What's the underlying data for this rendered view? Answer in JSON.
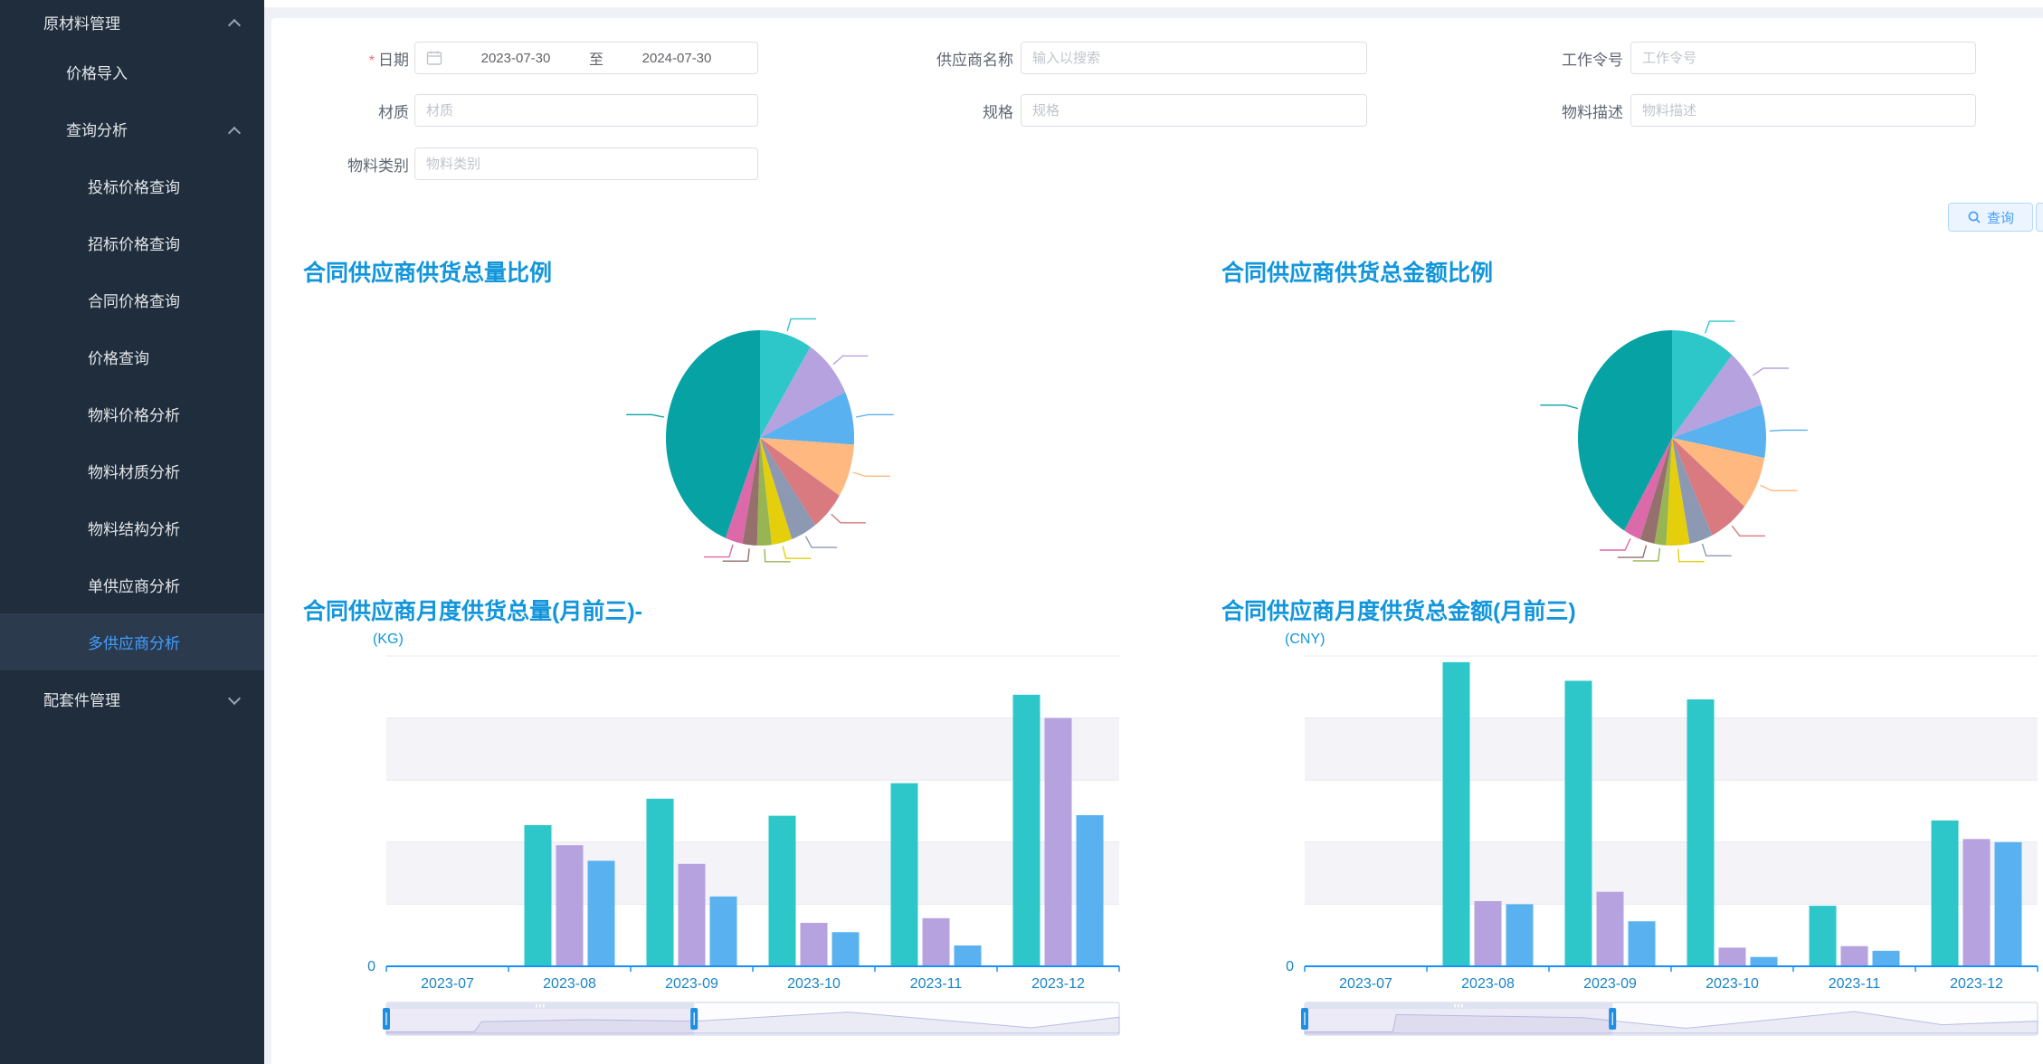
{
  "colors": {
    "sidebar_bg": "#1f2d3d",
    "sidebar_active_bg": "#2c3a4e",
    "sidebar_active_text": "#409eff",
    "title_blue": "#1296db",
    "axis_label_blue": "#1c84c6",
    "axis_line_blue": "#1890ff",
    "button_blue": "#409eff",
    "palette": [
      "#2ec7c9",
      "#b6a2de",
      "#5ab1ef",
      "#ffb980",
      "#d87a80",
      "#8d98b3",
      "#e5cf0d",
      "#97b552",
      "#95706d",
      "#dc69aa",
      "#07a2a4"
    ]
  },
  "sidebar": {
    "items": [
      {
        "label": "原材料管理",
        "level": 1,
        "chevron": "up",
        "active": false
      },
      {
        "label": "价格导入",
        "level": 2,
        "chevron": "",
        "active": false
      },
      {
        "label": "查询分析",
        "level": 2,
        "chevron": "up",
        "active": false
      },
      {
        "label": "投标价格查询",
        "level": 3,
        "chevron": "",
        "active": false
      },
      {
        "label": "招标价格查询",
        "level": 3,
        "chevron": "",
        "active": false
      },
      {
        "label": "合同价格查询",
        "level": 3,
        "chevron": "",
        "active": false
      },
      {
        "label": "价格查询",
        "level": 3,
        "chevron": "",
        "active": false
      },
      {
        "label": "物料价格分析",
        "level": 3,
        "chevron": "",
        "active": false
      },
      {
        "label": "物料材质分析",
        "level": 3,
        "chevron": "",
        "active": false
      },
      {
        "label": "物料结构分析",
        "level": 3,
        "chevron": "",
        "active": false
      },
      {
        "label": "单供应商分析",
        "level": 3,
        "chevron": "",
        "active": false
      },
      {
        "label": "多供应商分析",
        "level": 3,
        "chevron": "",
        "active": true
      },
      {
        "label": "配套件管理",
        "level": 1,
        "chevron": "down",
        "active": false
      }
    ]
  },
  "form": {
    "fields": [
      {
        "id": "date-range",
        "label": "日期",
        "required": true,
        "col": 0,
        "row": 0,
        "type": "daterange",
        "value_start": "2023-07-30",
        "separator": "至",
        "value_end": "2024-07-30"
      },
      {
        "id": "supplier-name",
        "label": "供应商名称",
        "required": false,
        "col": 1,
        "row": 0,
        "type": "text",
        "placeholder": "输入以搜索"
      },
      {
        "id": "work-order",
        "label": "工作令号",
        "required": false,
        "col": 2,
        "row": 0,
        "type": "text",
        "placeholder": "工作令号"
      },
      {
        "id": "material",
        "label": "材质",
        "required": false,
        "col": 0,
        "row": 1,
        "type": "text",
        "placeholder": "材质"
      },
      {
        "id": "spec",
        "label": "规格",
        "required": false,
        "col": 1,
        "row": 1,
        "type": "text",
        "placeholder": "规格"
      },
      {
        "id": "material-desc",
        "label": "物料描述",
        "required": false,
        "col": 2,
        "row": 1,
        "type": "text",
        "placeholder": "物料描述"
      },
      {
        "id": "material-category",
        "label": "物料类别",
        "required": false,
        "col": 0,
        "row": 2,
        "type": "text",
        "placeholder": "物料类别"
      }
    ]
  },
  "actions": {
    "search_label": "查询"
  },
  "chart_data": [
    {
      "type": "pie",
      "title": "合同供应商供货总量比例",
      "legend_position": "none",
      "labels_visible": false,
      "values": [
        9,
        9,
        8,
        8,
        6,
        4.5,
        3.5,
        2.5,
        2.5,
        3,
        44
      ],
      "colors": [
        "#2ec7c9",
        "#b6a2de",
        "#5ab1ef",
        "#ffb980",
        "#d87a80",
        "#8d98b3",
        "#e5cf0d",
        "#97b552",
        "#95706d",
        "#dc69aa",
        "#07a2a4"
      ]
    },
    {
      "type": "pie",
      "title": "合同供应商供货总金额比例",
      "legend_position": "none",
      "labels_visible": false,
      "values": [
        11,
        9,
        8,
        8,
        7,
        4,
        4,
        2,
        2.5,
        3,
        41.5
      ],
      "colors": [
        "#2ec7c9",
        "#b6a2de",
        "#5ab1ef",
        "#ffb980",
        "#d87a80",
        "#8d98b3",
        "#e5cf0d",
        "#97b552",
        "#95706d",
        "#dc69aa",
        "#07a2a4"
      ]
    },
    {
      "type": "bar",
      "title": "合同供应商月度供货总量(月前三)-",
      "unit": "(KG)",
      "xlabel": "",
      "ylabel": "",
      "y_axis_visible_tick": "0",
      "grid": "split-area",
      "categories": [
        "2023-07",
        "2023-08",
        "2023-09",
        "2023-10",
        "2023-11",
        "2023-12"
      ],
      "series": [
        {
          "name": "",
          "color": "#2ec7c9",
          "values": [
            0,
            45.5,
            54,
            48.5,
            59,
            87.5
          ]
        },
        {
          "name": "",
          "color": "#b6a2de",
          "values": [
            0,
            39,
            33,
            14,
            15.5,
            80
          ]
        },
        {
          "name": "",
          "color": "#5ab1ef",
          "values": [
            0,
            34,
            22.5,
            11,
            6.7,
            48.7
          ]
        }
      ],
      "values_unit": "percent-of-plot-height",
      "datazoom": {
        "start_pct": 0,
        "end_pct": 42,
        "sparkline": [
          [
            0,
            0.02
          ],
          [
            0.12,
            0.02
          ],
          [
            0.13,
            0.42
          ],
          [
            0.27,
            0.5
          ],
          [
            0.42,
            0.44
          ],
          [
            0.63,
            0.8
          ],
          [
            0.88,
            0.18
          ],
          [
            1,
            0.6
          ]
        ]
      }
    },
    {
      "type": "bar",
      "title": "合同供应商月度供货总金额(月前三)",
      "unit": "(CNY)",
      "xlabel": "",
      "ylabel": "",
      "y_axis_visible_tick": "0",
      "grid": "split-area",
      "categories": [
        "2023-07",
        "2023-08",
        "2023-09",
        "2023-10",
        "2023-11",
        "2023-12"
      ],
      "series": [
        {
          "name": "",
          "color": "#2ec7c9",
          "values": [
            0,
            98,
            92,
            86,
            19.5,
            47
          ]
        },
        {
          "name": "",
          "color": "#b6a2de",
          "values": [
            0,
            21,
            24,
            6,
            6.5,
            41
          ]
        },
        {
          "name": "",
          "color": "#5ab1ef",
          "values": [
            0,
            20,
            14.5,
            3,
            5,
            40
          ]
        }
      ],
      "values_unit": "percent-of-plot-height",
      "datazoom": {
        "start_pct": 0,
        "end_pct": 42,
        "sparkline": [
          [
            0,
            0.02
          ],
          [
            0.12,
            0.02
          ],
          [
            0.125,
            0.7
          ],
          [
            0.38,
            0.58
          ],
          [
            0.52,
            0.16
          ],
          [
            0.75,
            0.82
          ],
          [
            0.87,
            0.3
          ],
          [
            1,
            0.44
          ]
        ]
      }
    }
  ]
}
